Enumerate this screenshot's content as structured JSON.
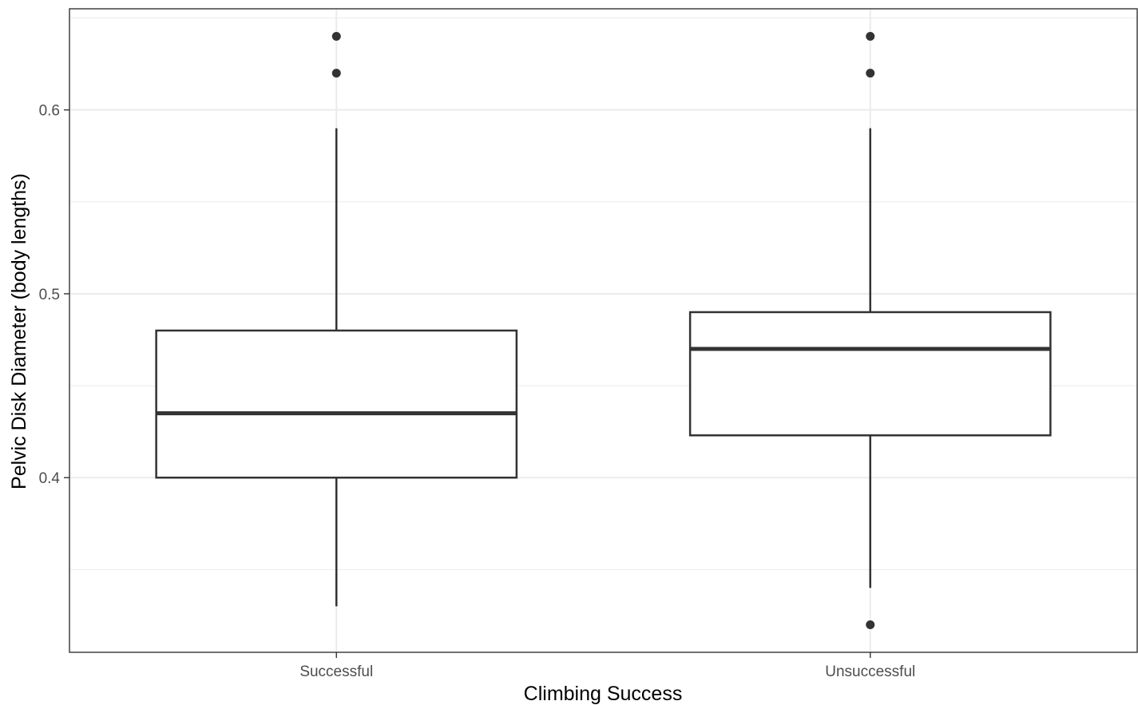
{
  "chart_data": {
    "type": "boxplot",
    "title": "",
    "xlabel": "Climbing Success",
    "ylabel": "Pelvic Disk Diameter (body lengths)",
    "categories": [
      "Successful",
      "Unsuccessful"
    ],
    "boxes": [
      {
        "category": "Successful",
        "whisker_low": 0.33,
        "q1": 0.4,
        "median": 0.435,
        "q3": 0.48,
        "whisker_high": 0.59,
        "outliers": [
          0.62,
          0.64
        ]
      },
      {
        "category": "Unsuccessful",
        "whisker_low": 0.34,
        "q1": 0.423,
        "median": 0.47,
        "q3": 0.49,
        "whisker_high": 0.59,
        "outliers": [
          0.32,
          0.62,
          0.64
        ]
      }
    ],
    "ylim": [
      0.305,
      0.655
    ],
    "y_major_ticks": [
      0.4,
      0.5,
      0.6
    ],
    "y_tick_labels": [
      "0.4",
      "0.5",
      "0.6"
    ],
    "y_minor_ticks": [
      0.35,
      0.45,
      0.55,
      0.65
    ],
    "grid": true,
    "legend": "none",
    "colors": {
      "box_line": "#333333",
      "grid": "#ebebeb",
      "panel_border": "#333333",
      "point": "#333333"
    }
  }
}
